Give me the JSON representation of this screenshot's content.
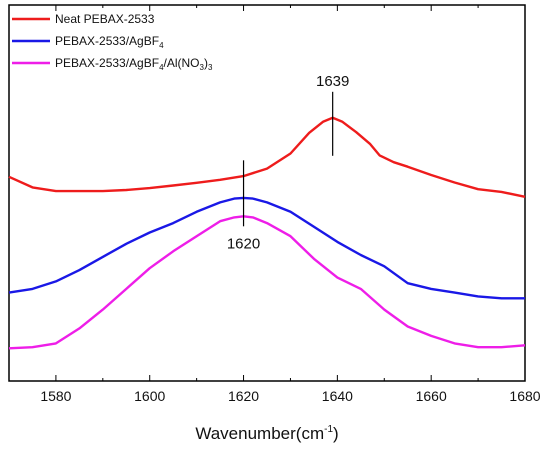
{
  "chart_data": {
    "type": "line",
    "title": "",
    "xlabel": "Wavenumber(cm",
    "xlabel_sup": "-1",
    "xlabel_suffix": ")",
    "ylabel": "",
    "xlim": [
      1570,
      1680
    ],
    "ylim": [
      0,
      1
    ],
    "xticks": [
      1580,
      1600,
      1620,
      1640,
      1660,
      1680
    ],
    "grid": false,
    "legend_position": "top-left",
    "series": [
      {
        "name": "Neat PEBAX-2533",
        "legend_parts": [
          {
            "t": "Neat PEBAX-2533"
          }
        ],
        "color": "#ee1c1c",
        "x": [
          1570,
          1575,
          1580,
          1585,
          1590,
          1595,
          1600,
          1605,
          1610,
          1615,
          1620,
          1625,
          1630,
          1634,
          1637,
          1639,
          1641,
          1644,
          1647,
          1649,
          1652,
          1655,
          1660,
          1665,
          1670,
          1675,
          1680
        ],
        "y": [
          0.543,
          0.515,
          0.505,
          0.505,
          0.505,
          0.508,
          0.513,
          0.52,
          0.527,
          0.535,
          0.545,
          0.565,
          0.605,
          0.66,
          0.69,
          0.7,
          0.69,
          0.662,
          0.63,
          0.6,
          0.582,
          0.57,
          0.548,
          0.528,
          0.51,
          0.503,
          0.49
        ]
      },
      {
        "name": "PEBAX-2533/AgBF4",
        "legend_parts": [
          {
            "t": "PEBAX-2533/AgBF"
          },
          {
            "t": "4",
            "sub": true
          }
        ],
        "color": "#1a18e6",
        "x": [
          1570,
          1575,
          1580,
          1585,
          1590,
          1595,
          1600,
          1605,
          1610,
          1615,
          1618,
          1620,
          1622,
          1625,
          1630,
          1635,
          1640,
          1645,
          1650,
          1655,
          1660,
          1665,
          1670,
          1675,
          1680
        ],
        "y": [
          0.235,
          0.245,
          0.265,
          0.295,
          0.33,
          0.365,
          0.395,
          0.42,
          0.45,
          0.475,
          0.485,
          0.487,
          0.485,
          0.475,
          0.45,
          0.41,
          0.37,
          0.335,
          0.305,
          0.26,
          0.245,
          0.235,
          0.225,
          0.22,
          0.22
        ]
      },
      {
        "name": "PEBAX-2533/AgBF4/Al(NO3)3",
        "legend_parts": [
          {
            "t": "PEBAX-2533/AgBF"
          },
          {
            "t": "4",
            "sub": true
          },
          {
            "t": "/Al(NO"
          },
          {
            "t": "3",
            "sub": true
          },
          {
            "t": ")"
          },
          {
            "t": "3",
            "sub": true
          }
        ],
        "color": "#ee1ee8",
        "x": [
          1570,
          1575,
          1580,
          1585,
          1590,
          1595,
          1600,
          1605,
          1610,
          1615,
          1618,
          1620,
          1622,
          1625,
          1630,
          1635,
          1640,
          1645,
          1650,
          1655,
          1660,
          1665,
          1670,
          1675,
          1680
        ],
        "y": [
          0.087,
          0.09,
          0.1,
          0.14,
          0.19,
          0.245,
          0.3,
          0.345,
          0.385,
          0.425,
          0.435,
          0.438,
          0.435,
          0.42,
          0.385,
          0.325,
          0.275,
          0.245,
          0.19,
          0.145,
          0.12,
          0.1,
          0.09,
          0.09,
          0.095
        ]
      }
    ],
    "annotations": [
      {
        "text": "1639",
        "x": 1639,
        "series": 0,
        "label_side": "above"
      },
      {
        "text": "1620",
        "x": 1620,
        "series": 2,
        "label_side": "below"
      }
    ]
  }
}
